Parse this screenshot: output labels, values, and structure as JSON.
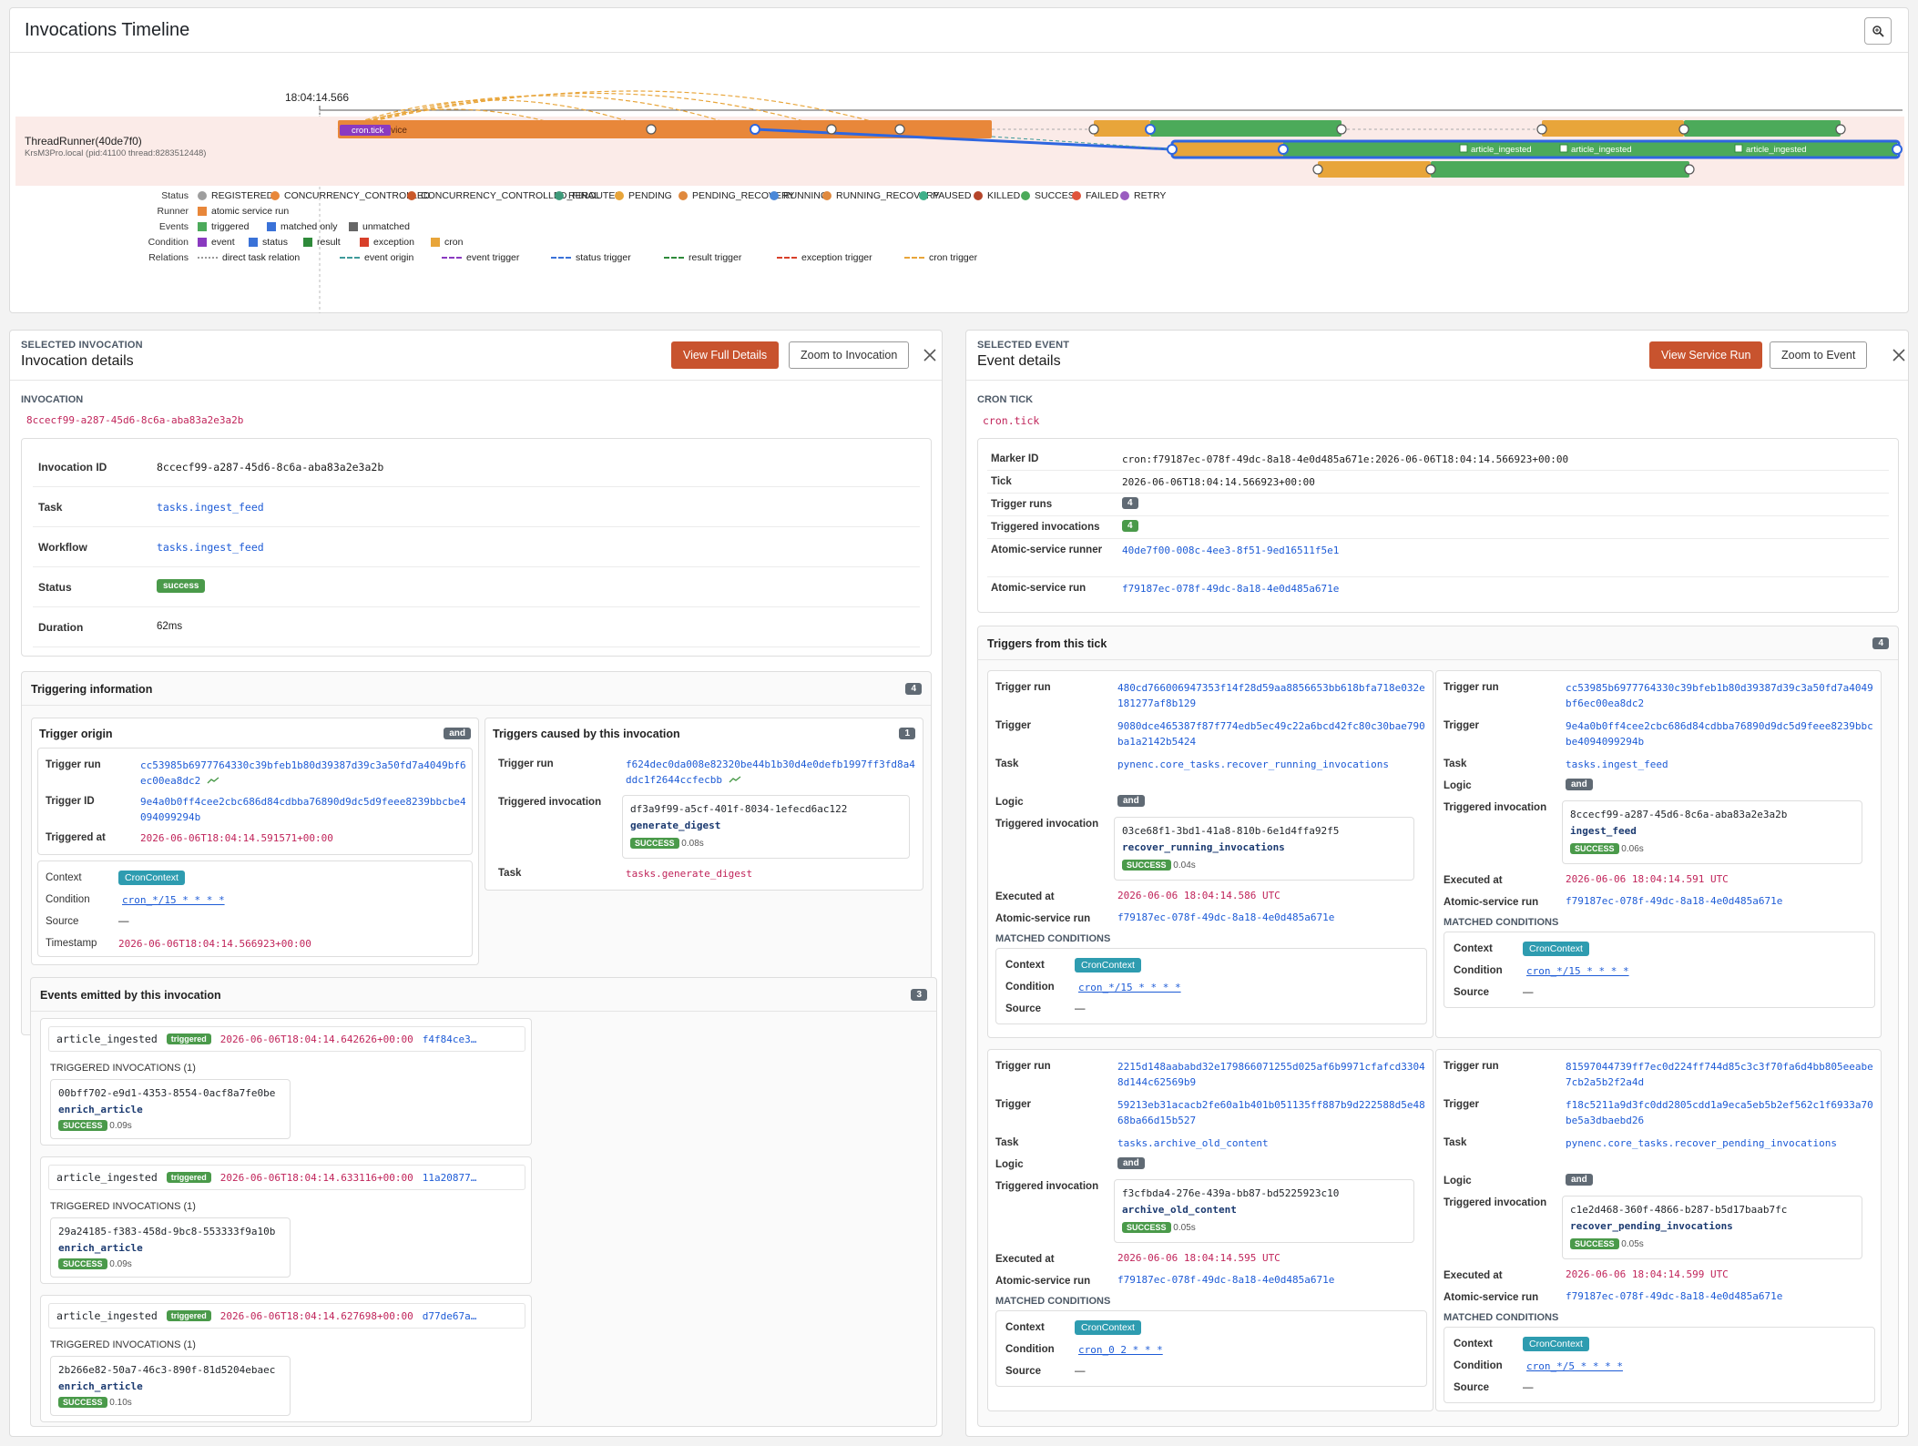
{
  "timeline": {
    "title": "Invocations Timeline",
    "time_label": "18:04:14.566",
    "runner_name": "ThreadRunner(40de7f0)",
    "runner_host": "KrsM3Pro.local (pid:41100 thread:8283512448)",
    "bar_labels": {
      "cron": "cron.tick",
      "service": "atomic service",
      "ingest1": "article_ingested",
      "ingest2": "article_ingested",
      "ingest3": "article_ingested"
    },
    "legend": {
      "status": {
        "key": "Status",
        "items": [
          {
            "label": "REGISTERED",
            "color": "#9e9e9e"
          },
          {
            "label": "CONCURRENCY_CONTROLLED",
            "color": "#e8873a"
          },
          {
            "label": "CONCURRENCY_CONTROLLED_FINAL",
            "color": "#c9582a"
          },
          {
            "label": "REROUTED",
            "color": "#3f9a7a"
          },
          {
            "label": "PENDING",
            "color": "#e8a53a"
          },
          {
            "label": "PENDING_RECOVERY",
            "color": "#e0893d"
          },
          {
            "label": "RUNNING",
            "color": "#4a88d8"
          },
          {
            "label": "RUNNING_RECOVERY",
            "color": "#e0893d"
          },
          {
            "label": "PAUSED",
            "color": "#3fb08a"
          },
          {
            "label": "KILLED",
            "color": "#b5452a"
          },
          {
            "label": "SUCCESS",
            "color": "#4caa5a"
          },
          {
            "label": "FAILED",
            "color": "#e0533a"
          },
          {
            "label": "RETRY",
            "color": "#9a5cc0"
          }
        ]
      },
      "runner": {
        "key": "Runner",
        "items": [
          {
            "label": "atomic service run",
            "color": "#e8873a"
          }
        ]
      },
      "events": {
        "key": "Events",
        "items": [
          {
            "label": "triggered",
            "color": "#4caa5a"
          },
          {
            "label": "matched only",
            "color": "#3a72d8"
          },
          {
            "label": "unmatched",
            "color": "#666666"
          }
        ]
      },
      "condition": {
        "key": "Condition",
        "items": [
          {
            "label": "event",
            "color": "#8a3ac0"
          },
          {
            "label": "status",
            "color": "#3a72d8"
          },
          {
            "label": "result",
            "color": "#2e8a3a"
          },
          {
            "label": "exception",
            "color": "#d8402a"
          },
          {
            "label": "cron",
            "color": "#e8a53a"
          }
        ]
      },
      "relations": {
        "key": "Relations",
        "items": [
          {
            "label": "direct task relation",
            "color": "#999999"
          },
          {
            "label": "event origin",
            "color": "#3f9a9a"
          },
          {
            "label": "event trigger",
            "color": "#8a3ac0"
          },
          {
            "label": "status trigger",
            "color": "#3a72d8"
          },
          {
            "label": "result trigger",
            "color": "#2e8a3a"
          },
          {
            "label": "exception trigger",
            "color": "#d8402a"
          },
          {
            "label": "cron trigger",
            "color": "#e8a53a"
          }
        ]
      }
    }
  },
  "left": {
    "tag": "SELECTED INVOCATION",
    "title": "Invocation details",
    "btn_primary": "View Full Details",
    "btn_secondary": "Zoom to Invocation",
    "section_label": "INVOCATION",
    "invocation_id_short": "8ccecf99-a287-45d6-8c6a-aba83a2e3a2b",
    "details": {
      "invocation_id": {
        "k": "Invocation ID",
        "v": "8ccecf99-a287-45d6-8c6a-aba83a2e3a2b"
      },
      "task": {
        "k": "Task",
        "v": "tasks.ingest_feed"
      },
      "workflow": {
        "k": "Workflow",
        "v": "tasks.ingest_feed"
      },
      "status": {
        "k": "Status",
        "v": "success"
      },
      "duration": {
        "k": "Duration",
        "v": "62ms"
      }
    },
    "triggering": {
      "title": "Triggering information",
      "count": "4",
      "origin": {
        "title": "Trigger origin",
        "badge": "and",
        "trigger_run_k": "Trigger run",
        "trigger_run_v": "cc53985b6977764330c39bfeb1b80d39387d39c3a50fd7a4049bf6ec00ea8dc2",
        "trigger_id_k": "Trigger ID",
        "trigger_id_v": "9e4a0b0ff4cee2cbc686d84cdbba76890d9dc5d9feee8239bbcbe4094099294b",
        "triggered_at_k": "Triggered at",
        "triggered_at_v": "2026-06-06T18:04:14.591571+00:00",
        "context_k": "Context",
        "context_v": "CronContext",
        "condition_k": "Condition",
        "condition_v": "cron_*/15 * * * *",
        "source_k": "Source",
        "source_v": "—",
        "timestamp_k": "Timestamp",
        "timestamp_v": "2026-06-06T18:04:14.566923+00:00"
      },
      "caused": {
        "title": "Triggers caused by this invocation",
        "count": "1",
        "trigger_run_k": "Trigger run",
        "trigger_run_v": "f624dec0da008e82320be44b1b30d4e0defb1997ff3fd8a4ddc1f2644ccfecbb",
        "triggered_inv_k": "Triggered invocation",
        "inv_id": "df3a9f99-a5cf-401f-8034-1efecd6ac122",
        "inv_name": "generate_digest",
        "inv_status": "SUCCESS",
        "inv_dur": "0.08s",
        "task_k": "Task",
        "task_v": "tasks.generate_digest"
      }
    },
    "events": {
      "title": "Events emitted by this invocation",
      "count": "3",
      "sub_label": "TRIGGERED INVOCATIONS (1)",
      "items": [
        {
          "name": "article_ingested",
          "badge": "triggered",
          "ts": "2026-06-06T18:04:14.642626+00:00",
          "ref": "f4f84ce3…",
          "inv_id": "00bff702-e9d1-4353-8554-0acf8a7fe0be",
          "inv_name": "enrich_article",
          "status": "SUCCESS",
          "dur": "0.09s"
        },
        {
          "name": "article_ingested",
          "badge": "triggered",
          "ts": "2026-06-06T18:04:14.633116+00:00",
          "ref": "11a20877…",
          "inv_id": "29a24185-f383-458d-9bc8-553333f9a10b",
          "inv_name": "enrich_article",
          "status": "SUCCESS",
          "dur": "0.09s"
        },
        {
          "name": "article_ingested",
          "badge": "triggered",
          "ts": "2026-06-06T18:04:14.627698+00:00",
          "ref": "d77de67a…",
          "inv_id": "2b266e82-50a7-46c3-890f-81d5204ebaec",
          "inv_name": "enrich_article",
          "status": "SUCCESS",
          "dur": "0.10s"
        }
      ]
    }
  },
  "right": {
    "tag": "SELECTED EVENT",
    "title": "Event details",
    "btn_primary": "View Service Run",
    "btn_secondary": "Zoom to Event",
    "section_label": "CRON TICK",
    "event_name": "cron.tick",
    "details": {
      "marker": {
        "k": "Marker ID",
        "v": "cron:f79187ec-078f-49dc-8a18-4e0d485a671e:2026-06-06T18:04:14.566923+00:00"
      },
      "tick": {
        "k": "Tick",
        "v": "2026-06-06T18:04:14.566923+00:00"
      },
      "trigger_runs": {
        "k": "Trigger runs",
        "v": "4"
      },
      "triggered_invocations": {
        "k": "Triggered invocations",
        "v": "4"
      },
      "runner": {
        "k": "Atomic-service runner",
        "v": "40de7f00-008c-4ee3-8f51-9ed16511f5e1"
      },
      "service_run": {
        "k": "Atomic-service run",
        "v": "f79187ec-078f-49dc-8a18-4e0d485a671e"
      }
    },
    "triggers_title": "Triggers from this tick",
    "triggers_count": "4",
    "labels": {
      "trigger_run": "Trigger run",
      "trigger": "Trigger",
      "task": "Task",
      "logic": "Logic",
      "triggered_invocation": "Triggered invocation",
      "executed_at": "Executed at",
      "atomic_run": "Atomic-service run",
      "matched": "MATCHED CONDITIONS",
      "context": "Context",
      "condition": "Condition",
      "source": "Source"
    },
    "cards": [
      {
        "trigger_run": "480cd766006947353f14f28d59aa8856653bb618bfa718e032e181277af8b129",
        "trigger": "9080dce465387f87f774edb5ec49c22a6bcd42fc80c30bae790ba1a2142b5424",
        "task": "pynenc.core_tasks.recover_running_invocations",
        "logic": "and",
        "inv_id": "03ce68f1-3bd1-41a8-810b-6e1d4ffa92f5",
        "inv_name": "recover_running_invocations",
        "status": "SUCCESS",
        "dur": "0.04s",
        "executed_at": "2026-06-06 18:04:14.586 UTC",
        "atomic_run": "f79187ec-078f-49dc-8a18-4e0d485a671e",
        "context": "CronContext",
        "condition": "cron_*/15 * * * *",
        "source": "—"
      },
      {
        "trigger_run": "cc53985b6977764330c39bfeb1b80d39387d39c3a50fd7a4049bf6ec00ea8dc2",
        "trigger": "9e4a0b0ff4cee2cbc686d84cdbba76890d9dc5d9feee8239bbcbe4094099294b",
        "task": "tasks.ingest_feed",
        "logic": "and",
        "inv_id": "8ccecf99-a287-45d6-8c6a-aba83a2e3a2b",
        "inv_name": "ingest_feed",
        "status": "SUCCESS",
        "dur": "0.06s",
        "executed_at": "2026-06-06 18:04:14.591 UTC",
        "atomic_run": "f79187ec-078f-49dc-8a18-4e0d485a671e",
        "context": "CronContext",
        "condition": "cron_*/15 * * * *",
        "source": "—"
      },
      {
        "trigger_run": "2215d148aababd32e179866071255d025af6b9971cfafcd33048d144c62569b9",
        "trigger": "59213eb31acacb2fe60a1b401b051135ff887b9d222588d5e4868ba66d15b527",
        "task": "tasks.archive_old_content",
        "logic": "and",
        "inv_id": "f3cfbda4-276e-439a-bb87-bd5225923c10",
        "inv_name": "archive_old_content",
        "status": "SUCCESS",
        "dur": "0.05s",
        "executed_at": "2026-06-06 18:04:14.595 UTC",
        "atomic_run": "f79187ec-078f-49dc-8a18-4e0d485a671e",
        "context": "CronContext",
        "condition": "cron_0 2 * * *",
        "source": "—"
      },
      {
        "trigger_run": "81597044739ff7ec0d224ff744d85c3c3f70fa6d4bb805eeabe7cb2a5b2f2a4d",
        "trigger": "f18c5211a9d3fc0dd2805cdd1a9eca5eb5b2ef562c1f6933a70be5a3dbaebd26",
        "task": "pynenc.core_tasks.recover_pending_invocations",
        "logic": "and",
        "inv_id": "c1e2d468-360f-4866-b287-b5d17baab7fc",
        "inv_name": "recover_pending_invocations",
        "status": "SUCCESS",
        "dur": "0.05s",
        "executed_at": "2026-06-06 18:04:14.599 UTC",
        "atomic_run": "f79187ec-078f-49dc-8a18-4e0d485a671e",
        "context": "CronContext",
        "condition": "cron_*/5 * * * *",
        "source": "—"
      }
    ]
  }
}
